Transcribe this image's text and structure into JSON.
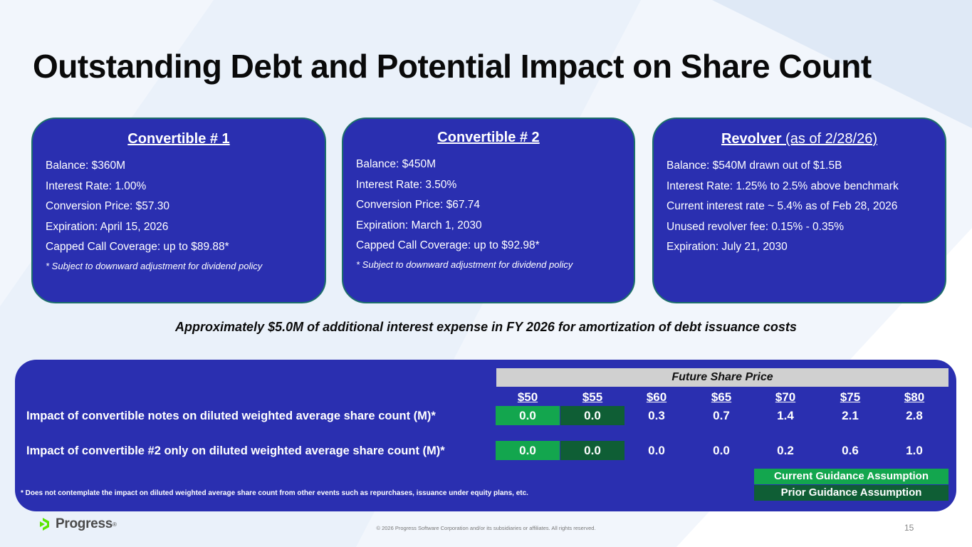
{
  "title": "Outstanding Debt and Potential Impact on Share Count",
  "cards": [
    {
      "title": "Convertible # 1",
      "lines": [
        "Balance: $360M",
        "Interest Rate: 1.00%",
        "Conversion Price: $57.30",
        "Expiration: April 15, 2026",
        "Capped Call Coverage: up to $89.88*"
      ],
      "note": "* Subject to downward adjustment for dividend policy"
    },
    {
      "title": "Convertible # 2",
      "lines": [
        "Balance: $450M",
        "Interest Rate: 3.50%",
        "Conversion Price: $67.74",
        "Expiration: March 1, 2030",
        "Capped Call Coverage: up to $92.98*"
      ],
      "note": "* Subject to downward adjustment for dividend policy"
    },
    {
      "title": "Revolver",
      "title_suffix": " (as of 2/28/26)",
      "lines": [
        "Balance: $540M drawn out of $1.5B",
        "Interest Rate: 1.25% to 2.5% above benchmark",
        "Current interest rate ~ 5.4% as of Feb 28, 2026",
        "Unused revolver fee: 0.15% - 0.35%",
        "Expiration: July 21, 2030"
      ]
    }
  ],
  "subheading": "Approximately $5.0M of additional interest expense in FY 2026 for amortization of debt issuance costs",
  "table": {
    "header": "Future Share Price",
    "prices": [
      "$50",
      "$55",
      "$60",
      "$65",
      "$70",
      "$75",
      "$80"
    ],
    "rows": [
      {
        "label": "Impact of convertible notes on diluted weighted average share count (M)*",
        "values": [
          "0.0",
          "0.0",
          "0.3",
          "0.7",
          "1.4",
          "2.1",
          "2.8"
        ]
      },
      {
        "label": "Impact of convertible #2 only on diluted weighted average share count (M)*",
        "values": [
          "0.0",
          "0.0",
          "0.0",
          "0.0",
          "0.2",
          "0.6",
          "1.0"
        ]
      }
    ],
    "legend_current": "Current Guidance Assumption",
    "legend_prior": "Prior Guidance Assumption",
    "footnote": "* Does not contemplate the impact on diluted weighted average share count from other events such as repurchases, issuance under equity plans, etc."
  },
  "footer": {
    "brand": "Progress",
    "copyright": "© 2026 Progress Software Corporation and/or its subsidiaries or affiliates. All rights reserved.",
    "page_number": "15"
  },
  "colors": {
    "panel": "#2a2fb0",
    "current": "#13a64e",
    "prior": "#0f5e35",
    "logo_green": "#5ce500"
  }
}
